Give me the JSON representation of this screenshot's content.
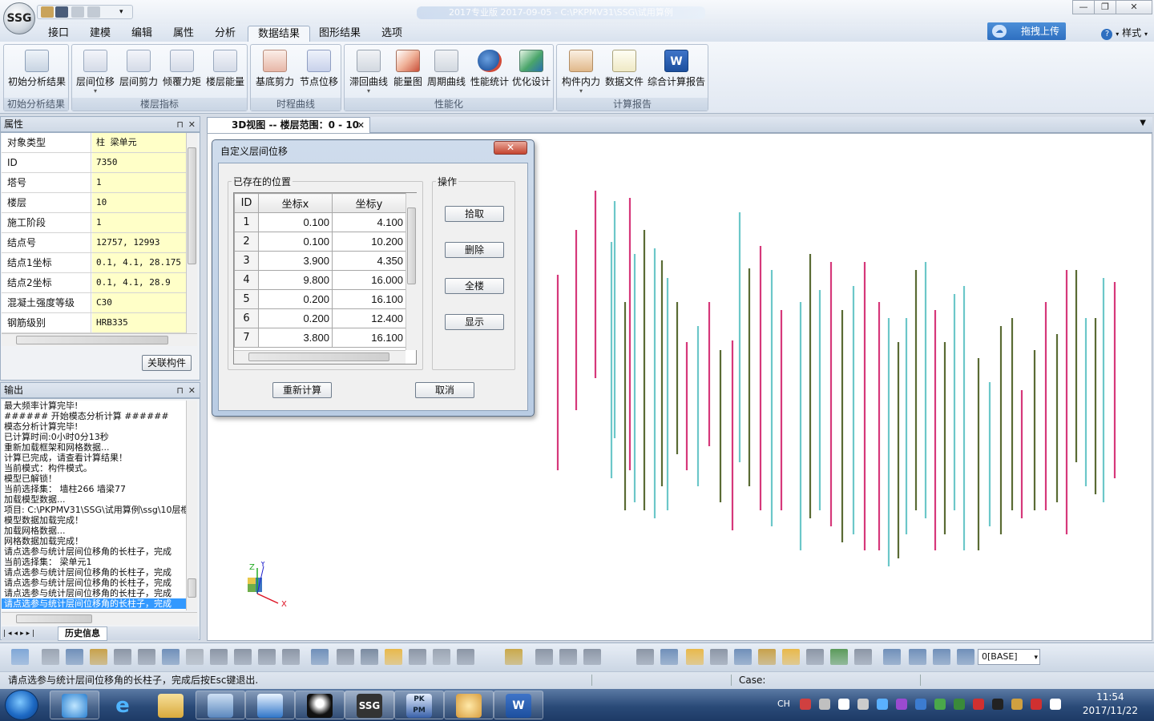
{
  "app": {
    "logo": "SSG",
    "title_blurred": "2017专业版 2017-09-05 - C:\\PKPMV31\\SSG\\试用算例"
  },
  "menu": {
    "items": [
      "接口",
      "建模",
      "编辑",
      "属性",
      "分析",
      "数据结果",
      "图形结果",
      "选项"
    ],
    "active": "数据结果",
    "upload": "拖拽上传",
    "style": "样式"
  },
  "ribbon": {
    "groups": [
      {
        "label": "初始分析结果",
        "buttons": [
          "初始分析结果"
        ]
      },
      {
        "label": "楼层指标",
        "buttons": [
          "层间位移",
          "层间剪力",
          "倾覆力矩",
          "楼层能量"
        ]
      },
      {
        "label": "时程曲线",
        "buttons": [
          "基底剪力",
          "节点位移"
        ]
      },
      {
        "label": "性能化",
        "buttons": [
          "滞回曲线",
          "能量图",
          "周期曲线",
          "性能统计",
          "优化设计"
        ]
      },
      {
        "label": "计算报告",
        "buttons": [
          "构件内力",
          "数据文件",
          "综合计算报告"
        ]
      }
    ]
  },
  "properties": {
    "title": "属性",
    "rows": [
      {
        "key": "对象类型",
        "value": "柱 梁单元"
      },
      {
        "key": "ID",
        "value": "7350"
      },
      {
        "key": "塔号",
        "value": "1"
      },
      {
        "key": "楼层",
        "value": "10"
      },
      {
        "key": "施工阶段",
        "value": "1"
      },
      {
        "key": "结点号",
        "value": "12757, 12993"
      },
      {
        "key": "结点1坐标",
        "value": "0.1, 4.1, 28.175"
      },
      {
        "key": "结点2坐标",
        "value": "0.1, 4.1, 28.9"
      },
      {
        "key": "混凝土强度等级",
        "value": "C30"
      },
      {
        "key": "钢筋级别",
        "value": "HRB335"
      }
    ],
    "related_button": "关联构件"
  },
  "output": {
    "title": "输出",
    "lines": [
      "最大频率计算完毕!",
      "###### 开始模态分析计算 ######",
      "模态分析计算完毕!",
      "已计算时间:0小时0分13秒",
      "重新加载框架和网格数据...",
      "计算已完成，请查看计算结果！",
      "当前模式：构件模式。",
      "模型已解锁！",
      "当前选择集： 墙柱266 墙梁77",
      "加载模型数据...",
      "项目: C:\\PKPMV31\\SSG\\试用算例\\ssg\\10层框",
      "模型数据加载完成！",
      "加载网格数据...",
      "网格数据加载完成！",
      "请点选参与统计层间位移角的长柱子，完成",
      "当前选择集： 梁单元1",
      "请点选参与统计层间位移角的长柱子，完成",
      "请点选参与统计层间位移角的长柱子，完成",
      "请点选参与统计层间位移角的长柱子，完成",
      "请点选参与统计层间位移角的长柱子，完成"
    ],
    "tab": "历史信息"
  },
  "viewport": {
    "tab_title": "3D视图 -- 楼层范围：0 - 10",
    "axes": {
      "x": "X",
      "y": "Y",
      "z": "Z"
    }
  },
  "dialog": {
    "title": "自定义层间位移",
    "existing_legend": "已存在的位置",
    "ops_legend": "操作",
    "columns": [
      "ID",
      "坐标x",
      "坐标y"
    ],
    "rows": [
      {
        "id": "1",
        "x": "0.100",
        "y": "4.100"
      },
      {
        "id": "2",
        "x": "0.100",
        "y": "10.200"
      },
      {
        "id": "3",
        "x": "3.900",
        "y": "4.350"
      },
      {
        "id": "4",
        "x": "9.800",
        "y": "16.000"
      },
      {
        "id": "5",
        "x": "0.200",
        "y": "16.100"
      },
      {
        "id": "6",
        "x": "0.200",
        "y": "12.400"
      },
      {
        "id": "7",
        "x": "3.800",
        "y": "16.100"
      }
    ],
    "buttons": {
      "pick": "拾取",
      "delete": "删除",
      "all": "全楼",
      "show": "显示",
      "recalc": "重新计算",
      "cancel": "取消"
    }
  },
  "bottom": {
    "layer_select": "0[BASE]",
    "status": "请点选参与统计层间位移角的长柱子，完成后按Esc键退出.",
    "case_label": "Case:"
  },
  "taskbar": {
    "lang": "CH",
    "time": "11:54",
    "date": "2017/11/22"
  },
  "colors": {
    "magenta": "#d6387a",
    "teal": "#6cc7c9",
    "olive": "#5a6b34",
    "ribbon_bg": "#e1e8f2",
    "selected_log": "#3399ff"
  }
}
